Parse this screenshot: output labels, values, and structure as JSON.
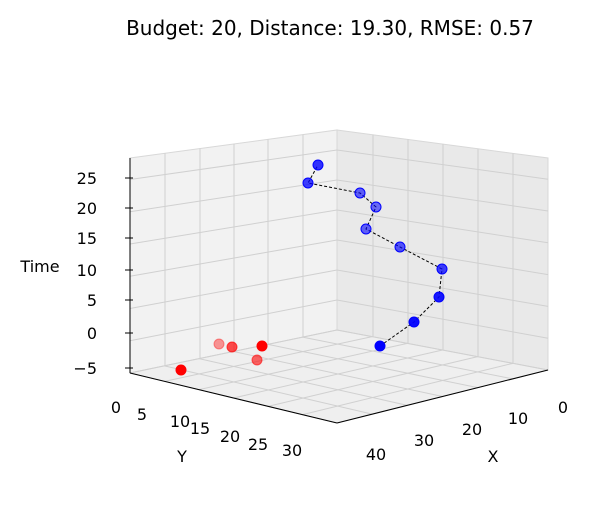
{
  "chart_data": {
    "type": "scatter3d",
    "title": "Budget: 20, Distance: 19.30, RMSE: 0.57",
    "xlabel": "X",
    "ylabel": "Y",
    "zlabel": "Time",
    "x_ticks": [
      "0",
      "10",
      "20",
      "30",
      "40"
    ],
    "y_ticks": [
      "0",
      "5",
      "10",
      "15",
      "20",
      "25",
      "30"
    ],
    "z_ticks": [
      "25",
      "20",
      "15",
      "10",
      "5",
      "0",
      "−5"
    ],
    "grid": true,
    "colors": {
      "trajectory": "#0000ff",
      "samples": "#ff0000",
      "path_line": "#000000"
    },
    "series": [
      {
        "style": "dashed-line-with-markers",
        "color": "#0000ff",
        "points_in_view_order": [
          {
            "order": 1,
            "approx_time": -3
          },
          {
            "order": 2,
            "approx_time": 0
          },
          {
            "order": 3,
            "approx_time": 4
          },
          {
            "order": 4,
            "approx_time": 9
          },
          {
            "order": 5,
            "approx_time": 13
          },
          {
            "order": 6,
            "approx_time": 17
          },
          {
            "order": 7,
            "approx_time": 20
          },
          {
            "order": 8,
            "approx_time": 22
          },
          {
            "order": 9,
            "approx_time": 24
          },
          {
            "order": 10,
            "approx_time": 26
          }
        ]
      },
      {
        "style": "markers",
        "color": "#ff0000",
        "points_in_view_order": [
          {
            "order": 1,
            "approx_time": -5
          },
          {
            "order": 2,
            "approx_time": -2
          },
          {
            "order": 3,
            "approx_time": -1
          },
          {
            "order": 4,
            "approx_time": -1
          },
          {
            "order": 5,
            "approx_time": 0
          }
        ]
      }
    ]
  }
}
